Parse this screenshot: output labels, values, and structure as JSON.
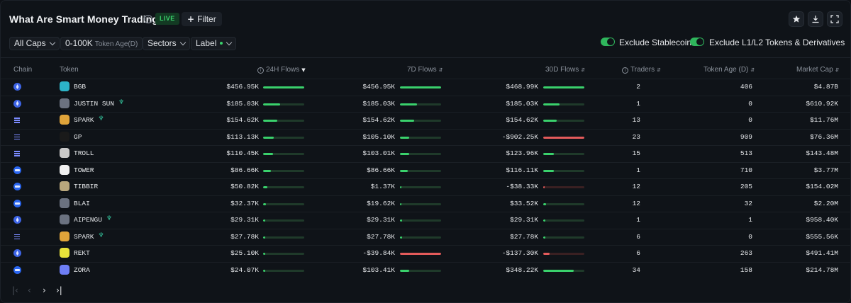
{
  "header": {
    "title": "What Are Smart Money Trading?",
    "live": "LIVE",
    "filter_label": "Filter",
    "icons": [
      "star-icon",
      "download-icon",
      "fullscreen-icon"
    ]
  },
  "filters": {
    "caps": "All Caps",
    "token_age_range": "0-100K",
    "token_age_label": "Token Age(D)",
    "sectors": "Sectors",
    "label": "Label",
    "exclude_stablecoin": "Exclude Stablecoin",
    "exclude_l1l2": "Exclude L1/L2 Tokens & Derivatives"
  },
  "columns": [
    "Chain",
    "Token",
    "24H Flows",
    "7D Flows",
    "30D Flows",
    "Traders",
    "Token Age (D)",
    "Market Cap"
  ],
  "colors": {
    "positive": "#3ad16c",
    "negative": "#e45b5b",
    "accent": "#2fb65c"
  },
  "rows": [
    {
      "chain": "ethereum",
      "token": "BGB",
      "sprout": false,
      "f24": "$456.95K",
      "f24v": 1.0,
      "f24n": false,
      "f7": "$456.95K",
      "f7v": 1.0,
      "f7n": false,
      "f30": "$468.99K",
      "f30v": 1.0,
      "f30n": false,
      "traders": "2",
      "age": "406",
      "mcap": "$4.87B",
      "logo": "#2cb3c7"
    },
    {
      "chain": "ethereum",
      "token": "JUSTIN SUN",
      "sprout": true,
      "f24": "$185.03K",
      "f24v": 0.41,
      "f24n": false,
      "f7": "$185.03K",
      "f7v": 0.41,
      "f7n": false,
      "f30": "$185.03K",
      "f30v": 0.4,
      "f30n": false,
      "traders": "1",
      "age": "0",
      "mcap": "$610.92K",
      "logo": "#6b7280"
    },
    {
      "chain": "solana",
      "token": "SPARK",
      "sprout": true,
      "f24": "$154.62K",
      "f24v": 0.34,
      "f24n": false,
      "f7": "$154.62K",
      "f7v": 0.34,
      "f7n": false,
      "f30": "$154.62K",
      "f30v": 0.33,
      "f30n": false,
      "traders": "13",
      "age": "0",
      "mcap": "$11.76M",
      "logo": "#e0a43a"
    },
    {
      "chain": "solana",
      "token": "GP",
      "sprout": false,
      "f24": "$113.13K",
      "f24v": 0.25,
      "f24n": false,
      "f7": "$105.10K",
      "f7v": 0.23,
      "f7n": false,
      "f30": "-$902.25K",
      "f30v": 1.0,
      "f30n": true,
      "traders": "23",
      "age": "909",
      "mcap": "$76.36M",
      "logo": "#1a1a1a"
    },
    {
      "chain": "solana",
      "token": "TROLL",
      "sprout": false,
      "f24": "$110.45K",
      "f24v": 0.24,
      "f24n": false,
      "f7": "$103.01K",
      "f7v": 0.23,
      "f7n": false,
      "f30": "$123.96K",
      "f30v": 0.26,
      "f30n": false,
      "traders": "15",
      "age": "513",
      "mcap": "$143.48M",
      "logo": "#c9c9c9"
    },
    {
      "chain": "base",
      "token": "TOWER",
      "sprout": false,
      "f24": "$86.66K",
      "f24v": 0.19,
      "f24n": false,
      "f7": "$86.66K",
      "f7v": 0.19,
      "f7n": false,
      "f30": "$116.11K",
      "f30v": 0.25,
      "f30n": false,
      "traders": "1",
      "age": "710",
      "mcap": "$3.77M",
      "logo": "#f0f0f0"
    },
    {
      "chain": "base",
      "token": "TIBBIR",
      "sprout": false,
      "f24": "$50.82K",
      "f24v": 0.11,
      "f24n": false,
      "f7": "$1.37K",
      "f7v": 0.01,
      "f7n": false,
      "f30": "-$38.33K",
      "f30v": 0.04,
      "f30n": true,
      "traders": "12",
      "age": "205",
      "mcap": "$154.02M",
      "logo": "#b9a77c"
    },
    {
      "chain": "base",
      "token": "BLAI",
      "sprout": false,
      "f24": "$32.37K",
      "f24v": 0.07,
      "f24n": false,
      "f7": "$19.62K",
      "f7v": 0.04,
      "f7n": false,
      "f30": "$33.52K",
      "f30v": 0.07,
      "f30n": false,
      "traders": "12",
      "age": "32",
      "mcap": "$2.20M",
      "logo": "#6b7280"
    },
    {
      "chain": "ethereum",
      "token": "AIPENGU",
      "sprout": true,
      "f24": "$29.31K",
      "f24v": 0.06,
      "f24n": false,
      "f7": "$29.31K",
      "f7v": 0.06,
      "f7n": false,
      "f30": "$29.31K",
      "f30v": 0.06,
      "f30n": false,
      "traders": "1",
      "age": "1",
      "mcap": "$958.40K",
      "logo": "#6b7280"
    },
    {
      "chain": "solana",
      "token": "SPARK",
      "sprout": true,
      "f24": "$27.78K",
      "f24v": 0.06,
      "f24n": false,
      "f7": "$27.78K",
      "f7v": 0.06,
      "f7n": false,
      "f30": "$27.78K",
      "f30v": 0.06,
      "f30n": false,
      "traders": "6",
      "age": "0",
      "mcap": "$555.56K",
      "logo": "#e0a43a"
    },
    {
      "chain": "ethereum",
      "token": "REKT",
      "sprout": false,
      "f24": "$25.10K",
      "f24v": 0.05,
      "f24n": false,
      "f7": "-$39.84K",
      "f7v": 1.0,
      "f7n": true,
      "f30": "-$137.30K",
      "f30v": 0.15,
      "f30n": true,
      "traders": "6",
      "age": "263",
      "mcap": "$491.41M",
      "logo": "#e8e23a"
    },
    {
      "chain": "base",
      "token": "ZORA",
      "sprout": false,
      "f24": "$24.07K",
      "f24v": 0.05,
      "f24n": false,
      "f7": "$103.41K",
      "f7v": 0.23,
      "f7n": false,
      "f30": "$348.22K",
      "f30v": 0.74,
      "f30n": false,
      "traders": "34",
      "age": "158",
      "mcap": "$214.78M",
      "logo": "#6e7ef5"
    }
  ],
  "pagination": {
    "first": "|‹",
    "prev": "‹",
    "next": "›",
    "last": "›|"
  }
}
